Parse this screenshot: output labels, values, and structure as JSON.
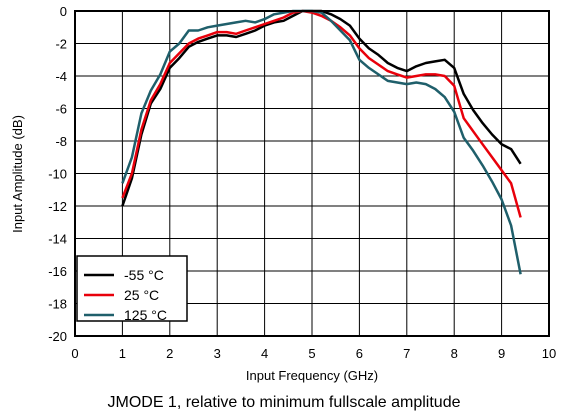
{
  "chart_data": {
    "type": "line",
    "xlabel": "Input Frequency (GHz)",
    "ylabel": "Input Amplitude (dB)",
    "xlim": [
      0,
      10
    ],
    "ylim": [
      -20,
      0
    ],
    "x_ticks": [
      "0",
      "1",
      "2",
      "3",
      "4",
      "5",
      "6",
      "7",
      "8",
      "9",
      "10"
    ],
    "y_ticks": [
      "0",
      "-2",
      "-4",
      "-6",
      "-8",
      "-10",
      "-12",
      "-14",
      "-16",
      "-18",
      "-20"
    ],
    "grid": true,
    "legend_position": "bottom-left",
    "series": [
      {
        "name": "-55 °C",
        "color": "#000000",
        "x": [
          1.0,
          1.2,
          1.4,
          1.6,
          1.8,
          2.0,
          2.2,
          2.4,
          2.6,
          2.8,
          3.0,
          3.2,
          3.4,
          3.6,
          3.8,
          4.0,
          4.2,
          4.4,
          4.6,
          4.8,
          5.0,
          5.2,
          5.4,
          5.6,
          5.8,
          6.0,
          6.2,
          6.4,
          6.6,
          6.8,
          7.0,
          7.2,
          7.4,
          7.6,
          7.8,
          8.0,
          8.2,
          8.4,
          8.6,
          8.8,
          9.0,
          9.2,
          9.4
        ],
        "y": [
          -12.0,
          -10.3,
          -7.6,
          -5.7,
          -4.8,
          -3.5,
          -2.9,
          -2.2,
          -1.9,
          -1.7,
          -1.5,
          -1.5,
          -1.6,
          -1.4,
          -1.2,
          -0.9,
          -0.7,
          -0.6,
          -0.3,
          0.0,
          0.0,
          0.0,
          -0.2,
          -0.5,
          -0.9,
          -1.7,
          -2.3,
          -2.7,
          -3.2,
          -3.5,
          -3.7,
          -3.4,
          -3.2,
          -3.1,
          -3.0,
          -3.5,
          -5.1,
          -6.1,
          -6.9,
          -7.6,
          -8.2,
          -8.5,
          -9.4
        ]
      },
      {
        "name": "25 °C",
        "color": "#e8000b",
        "x": [
          1.0,
          1.2,
          1.4,
          1.6,
          1.8,
          2.0,
          2.2,
          2.4,
          2.6,
          2.8,
          3.0,
          3.2,
          3.4,
          3.6,
          3.8,
          4.0,
          4.2,
          4.4,
          4.6,
          4.8,
          5.0,
          5.2,
          5.4,
          5.6,
          5.8,
          6.0,
          6.2,
          6.4,
          6.6,
          6.8,
          7.0,
          7.2,
          7.4,
          7.6,
          7.8,
          8.0,
          8.2,
          8.4,
          8.6,
          8.8,
          9.0,
          9.2,
          9.4
        ],
        "y": [
          -11.5,
          -10.0,
          -7.3,
          -5.5,
          -4.5,
          -3.2,
          -2.6,
          -2.0,
          -1.7,
          -1.5,
          -1.3,
          -1.3,
          -1.4,
          -1.2,
          -1.0,
          -0.8,
          -0.6,
          -0.4,
          -0.1,
          0.0,
          -0.1,
          -0.3,
          -0.6,
          -1.0,
          -1.5,
          -2.3,
          -2.9,
          -3.3,
          -3.7,
          -3.9,
          -4.1,
          -4.0,
          -3.9,
          -3.9,
          -4.0,
          -4.6,
          -6.6,
          -7.4,
          -8.2,
          -9.0,
          -9.8,
          -10.6,
          -12.7
        ]
      },
      {
        "name": "125 °C",
        "color": "#1f5f6b",
        "x": [
          1.0,
          1.2,
          1.4,
          1.6,
          1.8,
          2.0,
          2.2,
          2.4,
          2.6,
          2.8,
          3.0,
          3.2,
          3.4,
          3.6,
          3.8,
          4.0,
          4.2,
          4.4,
          4.6,
          4.8,
          5.0,
          5.2,
          5.4,
          5.6,
          5.8,
          6.0,
          6.2,
          6.4,
          6.6,
          6.8,
          7.0,
          7.2,
          7.4,
          7.6,
          7.8,
          8.0,
          8.2,
          8.4,
          8.6,
          8.8,
          9.0,
          9.2,
          9.4
        ],
        "y": [
          -10.6,
          -9.0,
          -6.3,
          -4.9,
          -3.9,
          -2.5,
          -2.0,
          -1.2,
          -1.2,
          -1.0,
          -0.9,
          -0.8,
          -0.7,
          -0.6,
          -0.7,
          -0.5,
          -0.2,
          -0.1,
          0.0,
          0.0,
          0.0,
          -0.1,
          -0.6,
          -1.2,
          -1.8,
          -3.0,
          -3.5,
          -3.9,
          -4.3,
          -4.4,
          -4.5,
          -4.4,
          -4.5,
          -4.8,
          -5.3,
          -6.2,
          -7.8,
          -8.6,
          -9.5,
          -10.5,
          -11.6,
          -13.2,
          -16.2
        ]
      }
    ]
  },
  "caption": "JMODE 1, relative to minimum fullscale amplitude"
}
